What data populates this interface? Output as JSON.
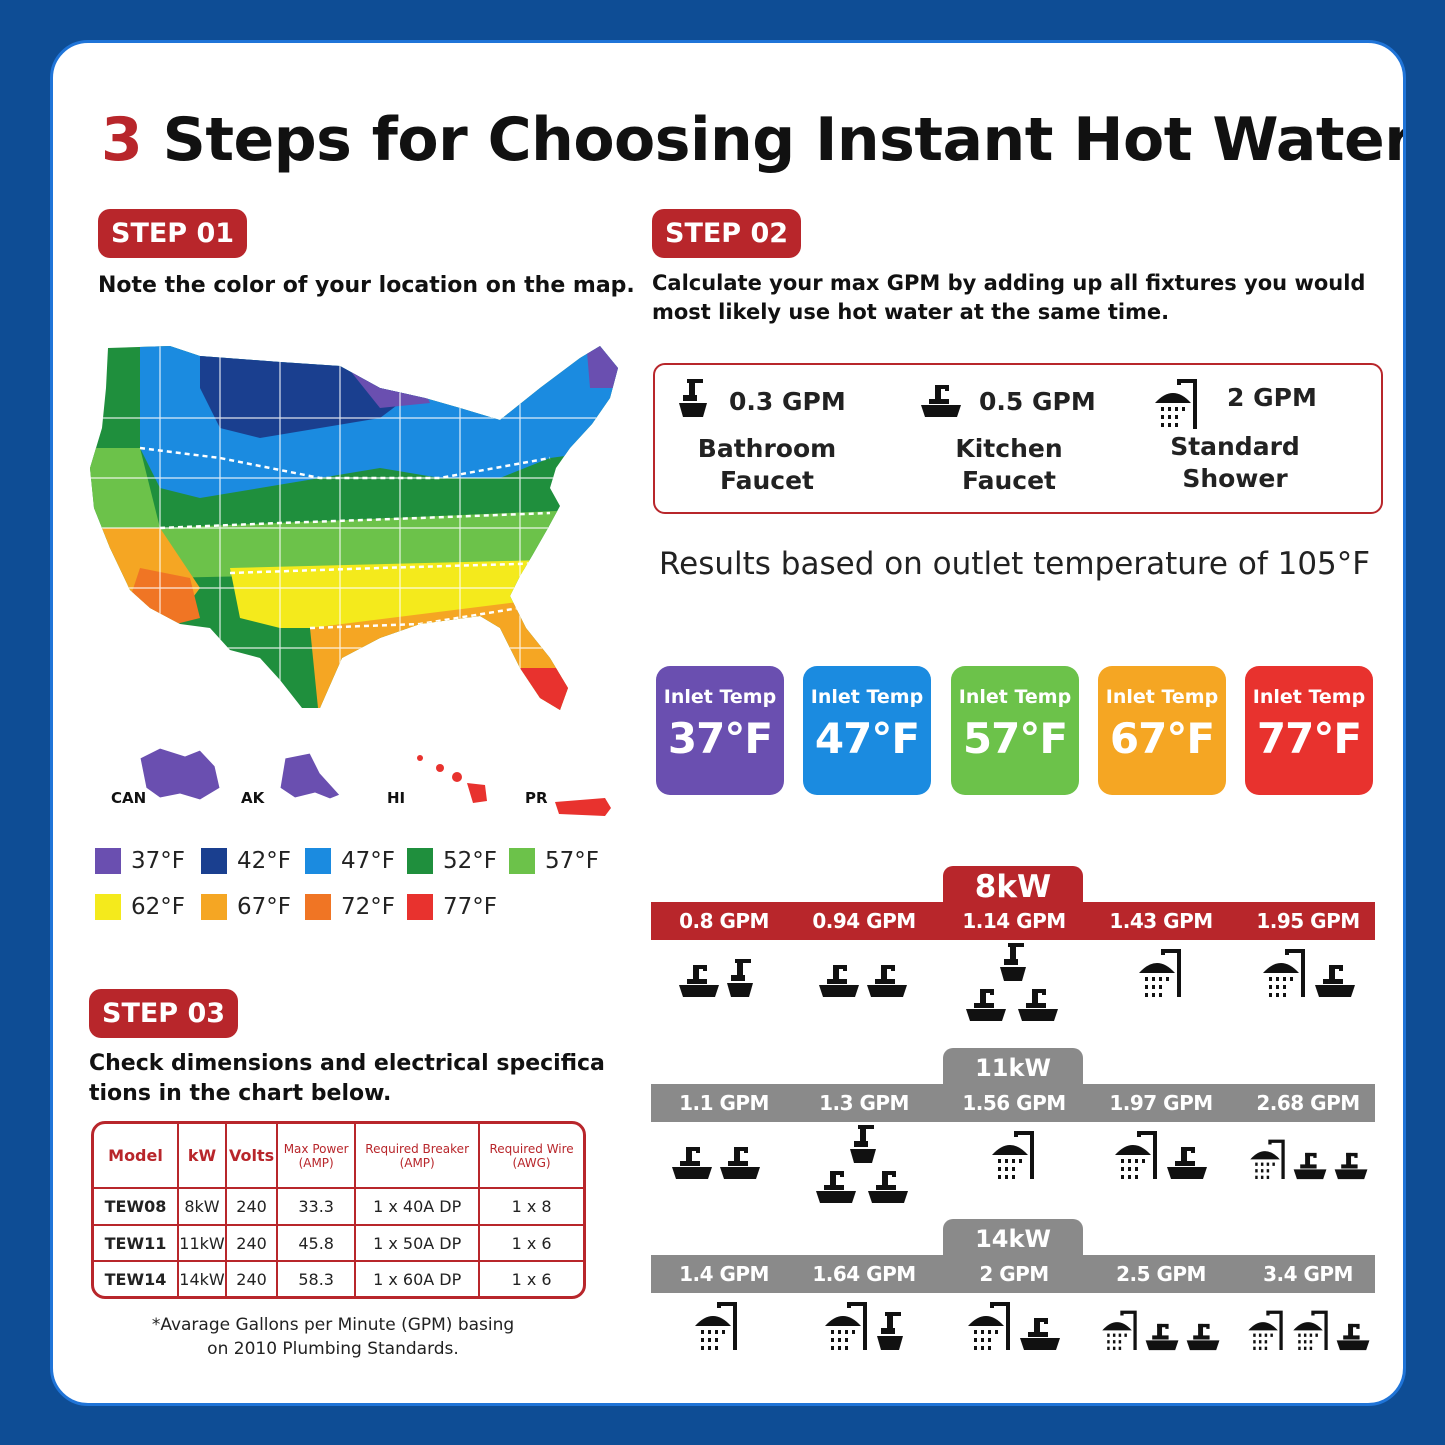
{
  "title": {
    "number": "3",
    "text": "Steps for Choosing Instant Hot Water"
  },
  "step1": {
    "badge": "STEP 01",
    "text": "Note the color of your location on the map.",
    "regions": [
      "CAN",
      "AK",
      "HI",
      "PR"
    ],
    "legend": [
      {
        "label": "37°F",
        "color": "#6a4fb0"
      },
      {
        "label": "42°F",
        "color": "#1a3f8f"
      },
      {
        "label": "47°F",
        "color": "#1b8be0"
      },
      {
        "label": "52°F",
        "color": "#1f8f3d"
      },
      {
        "label": "57°F",
        "color": "#6cc24a"
      },
      {
        "label": "62°F",
        "color": "#f4ea1c"
      },
      {
        "label": "67°F",
        "color": "#f5a623"
      },
      {
        "label": "72°F",
        "color": "#f07524"
      },
      {
        "label": "77°F",
        "color": "#e8322e"
      }
    ]
  },
  "step2": {
    "badge": "STEP 02",
    "text_line1": "Calculate your max GPM by adding up all fixtures you would",
    "text_line2": "most likely use hot water at the same time.",
    "fixtures": [
      {
        "gpm": "0.3 GPM",
        "line1": "Bathroom",
        "line2": "Faucet",
        "icon": "bathroom-faucet-icon"
      },
      {
        "gpm": "0.5 GPM",
        "line1": "Kitchen",
        "line2": "Faucet",
        "icon": "kitchen-faucet-icon"
      },
      {
        "gpm": "2 GPM",
        "line1": "Standard",
        "line2": "Shower",
        "icon": "shower-icon"
      }
    ],
    "results": "Results based on outlet temperature of 105°F",
    "inlet_temps": [
      {
        "label": "Inlet Temp",
        "value": "37°F",
        "color": "#6a4fb0"
      },
      {
        "label": "Inlet Temp",
        "value": "47°F",
        "color": "#1b8be0"
      },
      {
        "label": "Inlet Temp",
        "value": "57°F",
        "color": "#6cc24a"
      },
      {
        "label": "Inlet Temp",
        "value": "67°F",
        "color": "#f5a623"
      },
      {
        "label": "Inlet Temp",
        "value": "77°F",
        "color": "#e8322e"
      }
    ],
    "kw_blocks": [
      {
        "kw": "8kW",
        "color": "#b8262b",
        "gpm": [
          "0.8 GPM",
          "0.94 GPM",
          "1.14 GPM",
          "1.43 GPM",
          "1.95 GPM"
        ],
        "icons": [
          [
            "kitchen",
            "bath"
          ],
          [
            "kitchen",
            "kitchen"
          ],
          [
            "bath",
            "kitchen",
            "kitchen"
          ],
          [
            "shower"
          ],
          [
            "shower",
            "kitchen"
          ]
        ]
      },
      {
        "kw": "11kW",
        "color": "#8a8a8a",
        "gpm": [
          "1.1 GPM",
          "1.3 GPM",
          "1.56 GPM",
          "1.97 GPM",
          "2.68 GPM"
        ],
        "icons": [
          [
            "kitchen",
            "kitchen"
          ],
          [
            "bath",
            "kitchen",
            "kitchen"
          ],
          [
            "shower"
          ],
          [
            "shower",
            "kitchen"
          ],
          [
            "shower",
            "kitchen",
            "kitchen"
          ]
        ]
      },
      {
        "kw": "14kW",
        "color": "#8a8a8a",
        "gpm": [
          "1.4 GPM",
          "1.64 GPM",
          "2 GPM",
          "2.5 GPM",
          "3.4 GPM"
        ],
        "icons": [
          [
            "shower"
          ],
          [
            "shower",
            "bath"
          ],
          [
            "shower",
            "kitchen"
          ],
          [
            "shower",
            "kitchen",
            "kitchen"
          ],
          [
            "shower",
            "shower",
            "kitchen"
          ]
        ]
      }
    ]
  },
  "step3": {
    "badge": "STEP 03",
    "text_line1": "Check dimensions and electrical specifica",
    "text_line2": "tions in the chart below.",
    "table": {
      "headers": [
        "Model",
        "kW",
        "Volts",
        "Max Power (AMP)",
        "Required Breaker (AMP)",
        "Required Wire (AWG)"
      ],
      "rows": [
        [
          "TEW08",
          "8kW",
          "240",
          "33.3",
          "1 x 40A DP",
          "1 x 8"
        ],
        [
          "TEW11",
          "11kW",
          "240",
          "45.8",
          "1 x 50A DP",
          "1 x 6"
        ],
        [
          "TEW14",
          "14kW",
          "240",
          "58.3",
          "1 x 60A DP",
          "1 x 6"
        ]
      ]
    },
    "footnote_line1": "*Avarage Gallons per Minute (GPM) basing",
    "footnote_line2": "on 2010 Plumbing Standards."
  }
}
